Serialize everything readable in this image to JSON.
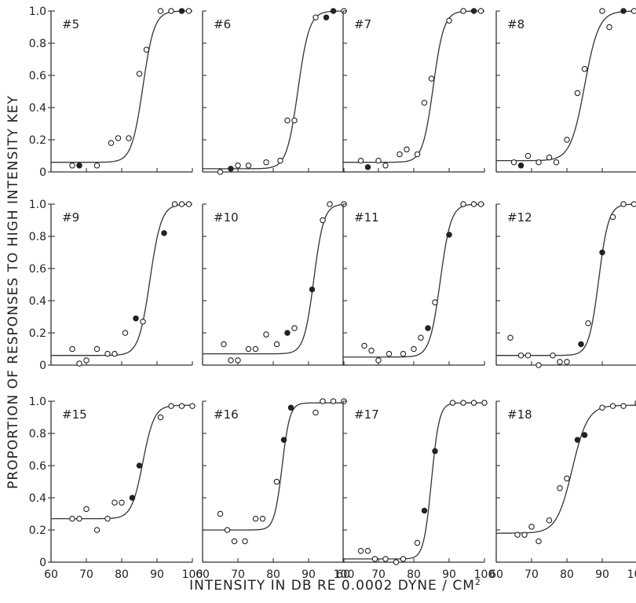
{
  "xlabel": "INTENSITY IN DB RE 0.0002 DYNE / CM",
  "xlabel_sup": "2",
  "ylabel": "PROPORTION OF RESPONSES TO HIGH INTENSITY KEY",
  "y_tick_labels_rows": [
    [
      "1.0",
      "0.8",
      "0.6",
      "0.4",
      "0.2",
      "0"
    ],
    [
      "1.0",
      "0.8",
      "0.6",
      "0.4",
      "0.2",
      "0"
    ],
    [
      "1.0",
      "0.8",
      "0.6",
      "0.4",
      "0.2",
      "0"
    ]
  ],
  "x_tick_labels": [
    "60",
    "70",
    "80",
    "90",
    "100"
  ],
  "chart_data": [
    {
      "type": "scatter",
      "title": "#5",
      "xlim": [
        60,
        100
      ],
      "ylim": [
        0,
        1
      ],
      "fit": {
        "floor": 0.06,
        "ceiling": 1.0,
        "mid": 86.0,
        "scale": 1.6
      },
      "points": [
        {
          "x": 66,
          "y": 0.04,
          "filled": false
        },
        {
          "x": 68,
          "y": 0.04,
          "filled": true
        },
        {
          "x": 73,
          "y": 0.04,
          "filled": false
        },
        {
          "x": 77,
          "y": 0.18,
          "filled": false
        },
        {
          "x": 79,
          "y": 0.21,
          "filled": false
        },
        {
          "x": 82,
          "y": 0.21,
          "filled": false
        },
        {
          "x": 85,
          "y": 0.61,
          "filled": false
        },
        {
          "x": 87,
          "y": 0.76,
          "filled": false
        },
        {
          "x": 91,
          "y": 1.0,
          "filled": false
        },
        {
          "x": 94,
          "y": 1.0,
          "filled": false
        },
        {
          "x": 97,
          "y": 1.0,
          "filled": true
        },
        {
          "x": 99,
          "y": 1.0,
          "filled": false
        }
      ]
    },
    {
      "type": "scatter",
      "title": "#6",
      "xlim": [
        60,
        100
      ],
      "ylim": [
        0,
        1
      ],
      "fit": {
        "floor": 0.02,
        "ceiling": 1.0,
        "mid": 87.0,
        "scale": 1.6
      },
      "points": [
        {
          "x": 65,
          "y": 0.0,
          "filled": false
        },
        {
          "x": 68,
          "y": 0.02,
          "filled": true
        },
        {
          "x": 70,
          "y": 0.04,
          "filled": false
        },
        {
          "x": 73,
          "y": 0.04,
          "filled": false
        },
        {
          "x": 78,
          "y": 0.06,
          "filled": false
        },
        {
          "x": 82,
          "y": 0.07,
          "filled": false
        },
        {
          "x": 84,
          "y": 0.32,
          "filled": false
        },
        {
          "x": 86,
          "y": 0.32,
          "filled": false
        },
        {
          "x": 92,
          "y": 0.96,
          "filled": false
        },
        {
          "x": 95,
          "y": 0.96,
          "filled": true
        },
        {
          "x": 97,
          "y": 1.0,
          "filled": true
        },
        {
          "x": 100,
          "y": 1.0,
          "filled": false
        }
      ]
    },
    {
      "type": "scatter",
      "title": "#7",
      "xlim": [
        60,
        100
      ],
      "ylim": [
        0,
        1
      ],
      "fit": {
        "floor": 0.06,
        "ceiling": 1.0,
        "mid": 85.5,
        "scale": 1.5
      },
      "points": [
        {
          "x": 65,
          "y": 0.07,
          "filled": false
        },
        {
          "x": 67,
          "y": 0.03,
          "filled": true
        },
        {
          "x": 70,
          "y": 0.07,
          "filled": false
        },
        {
          "x": 72,
          "y": 0.04,
          "filled": false
        },
        {
          "x": 76,
          "y": 0.11,
          "filled": false
        },
        {
          "x": 78,
          "y": 0.14,
          "filled": false
        },
        {
          "x": 81,
          "y": 0.11,
          "filled": false
        },
        {
          "x": 83,
          "y": 0.43,
          "filled": false
        },
        {
          "x": 85,
          "y": 0.58,
          "filled": false
        },
        {
          "x": 90,
          "y": 0.94,
          "filled": false
        },
        {
          "x": 94,
          "y": 1.0,
          "filled": false
        },
        {
          "x": 97,
          "y": 1.0,
          "filled": true
        },
        {
          "x": 99,
          "y": 1.0,
          "filled": false
        }
      ]
    },
    {
      "type": "scatter",
      "title": "#8",
      "xlim": [
        60,
        100
      ],
      "ylim": [
        0,
        1
      ],
      "fit": {
        "floor": 0.07,
        "ceiling": 1.0,
        "mid": 85.0,
        "scale": 2.0
      },
      "points": [
        {
          "x": 65,
          "y": 0.06,
          "filled": false
        },
        {
          "x": 67,
          "y": 0.04,
          "filled": true
        },
        {
          "x": 69,
          "y": 0.1,
          "filled": false
        },
        {
          "x": 72,
          "y": 0.06,
          "filled": false
        },
        {
          "x": 75,
          "y": 0.09,
          "filled": false
        },
        {
          "x": 77,
          "y": 0.06,
          "filled": false
        },
        {
          "x": 80,
          "y": 0.2,
          "filled": false
        },
        {
          "x": 83,
          "y": 0.49,
          "filled": false
        },
        {
          "x": 85,
          "y": 0.64,
          "filled": false
        },
        {
          "x": 90,
          "y": 1.0,
          "filled": false
        },
        {
          "x": 92,
          "y": 0.9,
          "filled": false
        },
        {
          "x": 96,
          "y": 1.0,
          "filled": true
        },
        {
          "x": 99,
          "y": 1.0,
          "filled": false
        }
      ]
    },
    {
      "type": "scatter",
      "title": "#9",
      "xlim": [
        60,
        100
      ],
      "ylim": [
        0,
        1
      ],
      "fit": {
        "floor": 0.06,
        "ceiling": 1.0,
        "mid": 88.0,
        "scale": 1.6
      },
      "points": [
        {
          "x": 66,
          "y": 0.1,
          "filled": false
        },
        {
          "x": 68,
          "y": 0.01,
          "filled": false
        },
        {
          "x": 70,
          "y": 0.03,
          "filled": false
        },
        {
          "x": 73,
          "y": 0.1,
          "filled": false
        },
        {
          "x": 76,
          "y": 0.07,
          "filled": false
        },
        {
          "x": 78,
          "y": 0.07,
          "filled": false
        },
        {
          "x": 81,
          "y": 0.2,
          "filled": false
        },
        {
          "x": 84,
          "y": 0.29,
          "filled": true
        },
        {
          "x": 86,
          "y": 0.27,
          "filled": false
        },
        {
          "x": 92,
          "y": 0.82,
          "filled": true
        },
        {
          "x": 95,
          "y": 1.0,
          "filled": false
        },
        {
          "x": 97,
          "y": 1.0,
          "filled": false
        },
        {
          "x": 99,
          "y": 1.0,
          "filled": false
        }
      ]
    },
    {
      "type": "scatter",
      "title": "#10",
      "xlim": [
        60,
        100
      ],
      "ylim": [
        0,
        1
      ],
      "fit": {
        "floor": 0.07,
        "ceiling": 1.0,
        "mid": 91.5,
        "scale": 1.4
      },
      "points": [
        {
          "x": 66,
          "y": 0.13,
          "filled": false
        },
        {
          "x": 68,
          "y": 0.03,
          "filled": false
        },
        {
          "x": 70,
          "y": 0.03,
          "filled": false
        },
        {
          "x": 73,
          "y": 0.1,
          "filled": false
        },
        {
          "x": 75,
          "y": 0.1,
          "filled": false
        },
        {
          "x": 78,
          "y": 0.19,
          "filled": false
        },
        {
          "x": 81,
          "y": 0.13,
          "filled": false
        },
        {
          "x": 84,
          "y": 0.2,
          "filled": true
        },
        {
          "x": 86,
          "y": 0.23,
          "filled": false
        },
        {
          "x": 91,
          "y": 0.47,
          "filled": true
        },
        {
          "x": 94,
          "y": 0.9,
          "filled": false
        },
        {
          "x": 96,
          "y": 1.0,
          "filled": false
        },
        {
          "x": 100,
          "y": 1.0,
          "filled": false
        }
      ]
    },
    {
      "type": "scatter",
      "title": "#11",
      "xlim": [
        60,
        100
      ],
      "ylim": [
        0,
        1
      ],
      "fit": {
        "floor": 0.05,
        "ceiling": 1.0,
        "mid": 87.5,
        "scale": 1.5
      },
      "points": [
        {
          "x": 66,
          "y": 0.12,
          "filled": false
        },
        {
          "x": 68,
          "y": 0.09,
          "filled": false
        },
        {
          "x": 70,
          "y": 0.03,
          "filled": false
        },
        {
          "x": 73,
          "y": 0.07,
          "filled": false
        },
        {
          "x": 77,
          "y": 0.07,
          "filled": false
        },
        {
          "x": 80,
          "y": 0.1,
          "filled": false
        },
        {
          "x": 82,
          "y": 0.17,
          "filled": false
        },
        {
          "x": 84,
          "y": 0.23,
          "filled": true
        },
        {
          "x": 86,
          "y": 0.39,
          "filled": false
        },
        {
          "x": 90,
          "y": 0.81,
          "filled": true
        },
        {
          "x": 94,
          "y": 1.0,
          "filled": false
        },
        {
          "x": 97,
          "y": 1.0,
          "filled": false
        },
        {
          "x": 99,
          "y": 1.0,
          "filled": false
        }
      ]
    },
    {
      "type": "scatter",
      "title": "#12",
      "xlim": [
        60,
        100
      ],
      "ylim": [
        0,
        1
      ],
      "fit": {
        "floor": 0.06,
        "ceiling": 1.0,
        "mid": 89.0,
        "scale": 1.4
      },
      "points": [
        {
          "x": 64,
          "y": 0.17,
          "filled": false
        },
        {
          "x": 67,
          "y": 0.06,
          "filled": false
        },
        {
          "x": 69,
          "y": 0.06,
          "filled": false
        },
        {
          "x": 72,
          "y": 0.0,
          "filled": false
        },
        {
          "x": 76,
          "y": 0.06,
          "filled": false
        },
        {
          "x": 78,
          "y": 0.02,
          "filled": false
        },
        {
          "x": 80,
          "y": 0.02,
          "filled": false
        },
        {
          "x": 84,
          "y": 0.13,
          "filled": true
        },
        {
          "x": 86,
          "y": 0.26,
          "filled": false
        },
        {
          "x": 90,
          "y": 0.7,
          "filled": true
        },
        {
          "x": 93,
          "y": 0.92,
          "filled": false
        },
        {
          "x": 96,
          "y": 1.0,
          "filled": false
        },
        {
          "x": 99,
          "y": 1.0,
          "filled": false
        }
      ]
    },
    {
      "type": "scatter",
      "title": "#15",
      "xlim": [
        60,
        100
      ],
      "ylim": [
        0,
        1
      ],
      "fit": {
        "floor": 0.27,
        "ceiling": 0.975,
        "mid": 86.0,
        "scale": 1.6
      },
      "points": [
        {
          "x": 66,
          "y": 0.27,
          "filled": false
        },
        {
          "x": 68,
          "y": 0.27,
          "filled": false
        },
        {
          "x": 70,
          "y": 0.33,
          "filled": false
        },
        {
          "x": 73,
          "y": 0.2,
          "filled": false
        },
        {
          "x": 76,
          "y": 0.27,
          "filled": false
        },
        {
          "x": 78,
          "y": 0.37,
          "filled": false
        },
        {
          "x": 80,
          "y": 0.37,
          "filled": false
        },
        {
          "x": 83,
          "y": 0.4,
          "filled": true
        },
        {
          "x": 85,
          "y": 0.6,
          "filled": true
        },
        {
          "x": 91,
          "y": 0.9,
          "filled": false
        },
        {
          "x": 94,
          "y": 0.97,
          "filled": false
        },
        {
          "x": 97,
          "y": 0.97,
          "filled": false
        },
        {
          "x": 100,
          "y": 0.97,
          "filled": false
        }
      ]
    },
    {
      "type": "scatter",
      "title": "#16",
      "xlim": [
        60,
        100
      ],
      "ylim": [
        0,
        1
      ],
      "fit": {
        "floor": 0.2,
        "ceiling": 0.99,
        "mid": 82.5,
        "scale": 1.1
      },
      "points": [
        {
          "x": 65,
          "y": 0.3,
          "filled": false
        },
        {
          "x": 67,
          "y": 0.2,
          "filled": false
        },
        {
          "x": 69,
          "y": 0.13,
          "filled": false
        },
        {
          "x": 72,
          "y": 0.13,
          "filled": false
        },
        {
          "x": 75,
          "y": 0.27,
          "filled": false
        },
        {
          "x": 77,
          "y": 0.27,
          "filled": false
        },
        {
          "x": 81,
          "y": 0.5,
          "filled": false
        },
        {
          "x": 83,
          "y": 0.76,
          "filled": true
        },
        {
          "x": 85,
          "y": 0.96,
          "filled": true
        },
        {
          "x": 92,
          "y": 0.93,
          "filled": false
        },
        {
          "x": 94,
          "y": 1.0,
          "filled": false
        },
        {
          "x": 97,
          "y": 1.0,
          "filled": false
        },
        {
          "x": 100,
          "y": 1.0,
          "filled": false
        }
      ]
    },
    {
      "type": "scatter",
      "title": "#17",
      "xlim": [
        60,
        100
      ],
      "ylim": [
        0,
        1
      ],
      "fit": {
        "floor": 0.02,
        "ceiling": 0.99,
        "mid": 85.0,
        "scale": 1.1
      },
      "points": [
        {
          "x": 65,
          "y": 0.07,
          "filled": false
        },
        {
          "x": 67,
          "y": 0.07,
          "filled": false
        },
        {
          "x": 69,
          "y": 0.02,
          "filled": false
        },
        {
          "x": 72,
          "y": 0.02,
          "filled": false
        },
        {
          "x": 75,
          "y": 0.0,
          "filled": false
        },
        {
          "x": 77,
          "y": 0.02,
          "filled": false
        },
        {
          "x": 81,
          "y": 0.12,
          "filled": false
        },
        {
          "x": 83,
          "y": 0.32,
          "filled": true
        },
        {
          "x": 86,
          "y": 0.69,
          "filled": true
        },
        {
          "x": 91,
          "y": 0.99,
          "filled": false
        },
        {
          "x": 94,
          "y": 0.99,
          "filled": false
        },
        {
          "x": 97,
          "y": 0.99,
          "filled": false
        },
        {
          "x": 100,
          "y": 0.99,
          "filled": false
        }
      ]
    },
    {
      "type": "scatter",
      "title": "#18",
      "xlim": [
        60,
        100
      ],
      "ylim": [
        0,
        1
      ],
      "fit": {
        "floor": 0.18,
        "ceiling": 0.975,
        "mid": 81.5,
        "scale": 2.2
      },
      "points": [
        {
          "x": 66,
          "y": 0.17,
          "filled": false
        },
        {
          "x": 68,
          "y": 0.17,
          "filled": false
        },
        {
          "x": 70,
          "y": 0.22,
          "filled": false
        },
        {
          "x": 72,
          "y": 0.13,
          "filled": false
        },
        {
          "x": 75,
          "y": 0.26,
          "filled": false
        },
        {
          "x": 78,
          "y": 0.46,
          "filled": false
        },
        {
          "x": 80,
          "y": 0.52,
          "filled": false
        },
        {
          "x": 83,
          "y": 0.76,
          "filled": true
        },
        {
          "x": 85,
          "y": 0.79,
          "filled": true
        },
        {
          "x": 90,
          "y": 0.96,
          "filled": false
        },
        {
          "x": 93,
          "y": 0.97,
          "filled": false
        },
        {
          "x": 96,
          "y": 0.97,
          "filled": false
        },
        {
          "x": 100,
          "y": 0.99,
          "filled": false
        }
      ]
    }
  ]
}
